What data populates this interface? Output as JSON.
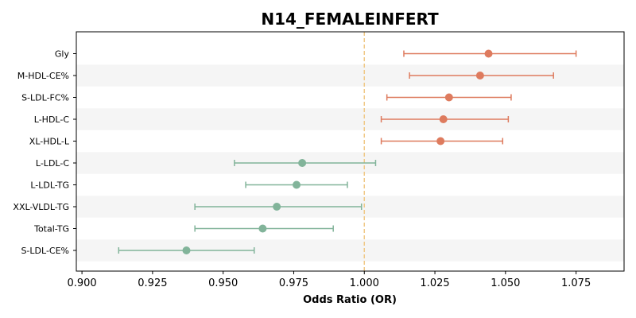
{
  "chart_data": {
    "type": "forest",
    "title": "N14_FEMALEINFERT",
    "xlabel": "Odds Ratio (OR)",
    "xlim": [
      0.898,
      1.092
    ],
    "xticks": [
      "0.900",
      "0.925",
      "0.950",
      "0.975",
      "1.000",
      "1.025",
      "1.050",
      "1.075"
    ],
    "reference_line": 1.0,
    "reference_color": "#f0c987",
    "colors": {
      "positive": "#de7b5e",
      "negative": "#82b49a",
      "band": "#f5f5f5"
    },
    "categories": [
      "Gly",
      "M-HDL-CE%",
      "S-LDL-FC%",
      "L-HDL-C",
      "XL-HDL-L",
      "L-LDL-C",
      "L-LDL-TG",
      "XXL-VLDL-TG",
      "Total-TG",
      "S-LDL-CE%"
    ],
    "or": [
      1.044,
      1.041,
      1.03,
      1.028,
      1.027,
      0.978,
      0.976,
      0.969,
      0.964,
      0.937
    ],
    "ci_low": [
      1.014,
      1.016,
      1.008,
      1.006,
      1.006,
      0.954,
      0.958,
      0.94,
      0.94,
      0.913
    ],
    "ci_high": [
      1.075,
      1.067,
      1.052,
      1.051,
      1.049,
      1.004,
      0.994,
      0.999,
      0.989,
      0.961
    ]
  }
}
